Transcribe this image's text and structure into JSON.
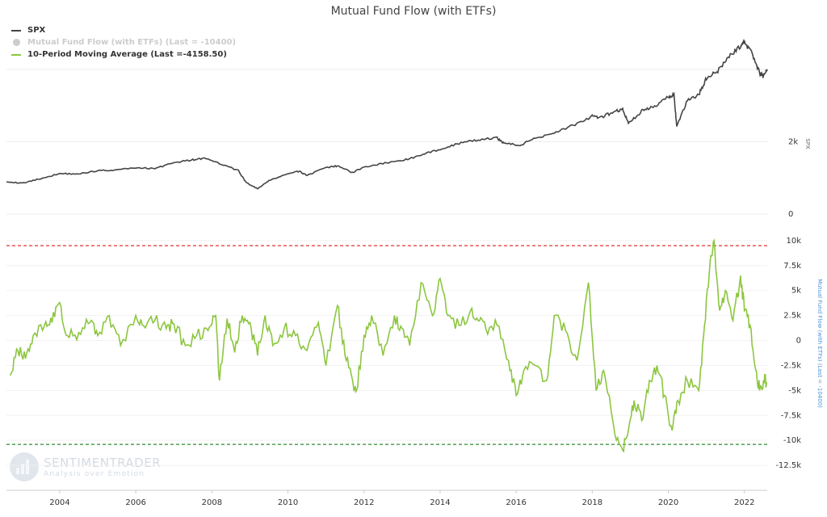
{
  "chart_data": {
    "type": "line",
    "title": "Mutual Fund Flow (with ETFs)",
    "legend": {
      "placement": "top-left",
      "entries": [
        {
          "label": "SPX",
          "color": "#444444",
          "marker": "line"
        },
        {
          "label": "Mutual Fund Flow (with ETFs) (Last = -10400)",
          "color": "#cccccc",
          "marker": "dot",
          "hidden": true
        },
        {
          "label": "10-Period Moving Average (Last =-4158.50)",
          "color": "#8cc63f",
          "marker": "line"
        }
      ]
    },
    "x_ticks": [
      "2004",
      "2006",
      "2008",
      "2010",
      "2012",
      "2014",
      "2016",
      "2018",
      "2020",
      "2022"
    ],
    "x_range": [
      2002.6,
      2022.6
    ],
    "upper_panel": {
      "axis_title": "SPX",
      "tick_labels": [
        "0",
        "2k"
      ],
      "tick_values": [
        0,
        2000
      ],
      "ylim": [
        0,
        4800
      ],
      "gridlines": [
        0,
        2000,
        4000
      ],
      "series": {
        "name": "SPX",
        "color": "#444444",
        "x": [
          2002.6,
          2003.0,
          2003.5,
          2004.0,
          2004.5,
          2005.0,
          2005.5,
          2006.0,
          2006.5,
          2007.0,
          2007.5,
          2007.8,
          2008.3,
          2008.7,
          2008.9,
          2009.2,
          2009.5,
          2010.0,
          2010.3,
          2010.5,
          2011.0,
          2011.3,
          2011.7,
          2012.0,
          2012.5,
          2013.0,
          2013.5,
          2014.0,
          2014.5,
          2015.0,
          2015.5,
          2015.7,
          2016.1,
          2016.5,
          2017.0,
          2017.5,
          2018.0,
          2018.2,
          2018.5,
          2018.8,
          2018.95,
          2019.3,
          2019.6,
          2020.0,
          2020.15,
          2020.22,
          2020.5,
          2020.8,
          2021.0,
          2021.3,
          2021.6,
          2021.9,
          2022.0,
          2022.2,
          2022.4,
          2022.5,
          2022.6
        ],
        "values": [
          900,
          850,
          980,
          1120,
          1110,
          1200,
          1220,
          1280,
          1260,
          1420,
          1500,
          1540,
          1360,
          1200,
          870,
          700,
          920,
          1120,
          1180,
          1070,
          1280,
          1330,
          1150,
          1300,
          1400,
          1480,
          1620,
          1800,
          1950,
          2050,
          2100,
          1950,
          1900,
          2100,
          2250,
          2450,
          2700,
          2650,
          2800,
          2900,
          2500,
          2850,
          2950,
          3250,
          3300,
          2400,
          3150,
          3300,
          3750,
          3950,
          4350,
          4650,
          4750,
          4450,
          3900,
          3800,
          4000
        ]
      }
    },
    "lower_panel": {
      "axis_title": "Mutual Fund Flow (with ETFs) (Last = -10400)",
      "tick_labels": [
        "10k",
        "7.5k",
        "5k",
        "2.5k",
        "0",
        "-2.5k",
        "-5k",
        "-7.5k",
        "-10k",
        "-12.5k"
      ],
      "tick_values": [
        10000,
        7500,
        5000,
        2500,
        0,
        -2500,
        -5000,
        -7500,
        -10000,
        -12500
      ],
      "ylim": [
        -15000,
        12500
      ],
      "reference_lines": [
        {
          "value": 9500,
          "color": "#e03030",
          "style": "dashed"
        },
        {
          "value": -10400,
          "color": "#2e8b2e",
          "style": "dashed"
        }
      ],
      "series": {
        "name": "10-Period Moving Average",
        "color": "#8cc63f",
        "x": [
          2002.7,
          2002.9,
          2003.1,
          2003.3,
          2003.6,
          2003.8,
          2004.0,
          2004.2,
          2004.5,
          2004.8,
          2005.0,
          2005.3,
          2005.6,
          2006.0,
          2006.2,
          2006.5,
          2006.8,
          2007.0,
          2007.3,
          2007.6,
          2007.9,
          2008.1,
          2008.2,
          2008.4,
          2008.6,
          2008.8,
          2009.0,
          2009.2,
          2009.4,
          2009.6,
          2009.9,
          2010.2,
          2010.5,
          2010.8,
          2011.0,
          2011.3,
          2011.5,
          2011.7,
          2011.8,
          2012.0,
          2012.2,
          2012.5,
          2012.8,
          2013.0,
          2013.2,
          2013.5,
          2013.8,
          2014.0,
          2014.2,
          2014.5,
          2014.8,
          2015.0,
          2015.2,
          2015.5,
          2015.8,
          2016.0,
          2016.2,
          2016.5,
          2016.8,
          2017.0,
          2017.3,
          2017.6,
          2017.9,
          2018.1,
          2018.3,
          2018.6,
          2018.8,
          2018.95,
          2019.1,
          2019.3,
          2019.5,
          2019.7,
          2019.9,
          2020.1,
          2020.25,
          2020.5,
          2020.8,
          2020.95,
          2021.1,
          2021.2,
          2021.35,
          2021.5,
          2021.7,
          2021.9,
          2022.0,
          2022.15,
          2022.3,
          2022.4,
          2022.5,
          2022.6
        ],
        "values": [
          -3500,
          -1000,
          -1800,
          500,
          1500,
          1800,
          3800,
          500,
          800,
          1800,
          500,
          2500,
          -500,
          2500,
          1500,
          2000,
          1200,
          1700,
          -500,
          500,
          1000,
          2500,
          -4000,
          2200,
          -1200,
          2500,
          1800,
          -1500,
          2500,
          -500,
          1200,
          500,
          -1000,
          1800,
          -2500,
          3500,
          -1500,
          -4000,
          -5000,
          500,
          2500,
          -1500,
          2500,
          1200,
          -500,
          5800,
          2500,
          6200,
          2500,
          1500,
          3000,
          2000,
          1200,
          1500,
          -2000,
          -5500,
          -3000,
          -2500,
          -4000,
          2500,
          1000,
          -2000,
          5800,
          -5000,
          -3000,
          -9500,
          -11000,
          -9000,
          -6000,
          -8000,
          -4000,
          -2500,
          -5500,
          -9000,
          -6000,
          -4000,
          -5000,
          1500,
          8000,
          10000,
          3000,
          5000,
          2000,
          6500,
          3000,
          1500,
          -3000,
          -5000,
          -4000,
          -4200
        ]
      }
    }
  },
  "watermark": {
    "name": "SENTIMENTRADER",
    "tagline": "Analysis over Emotion"
  }
}
